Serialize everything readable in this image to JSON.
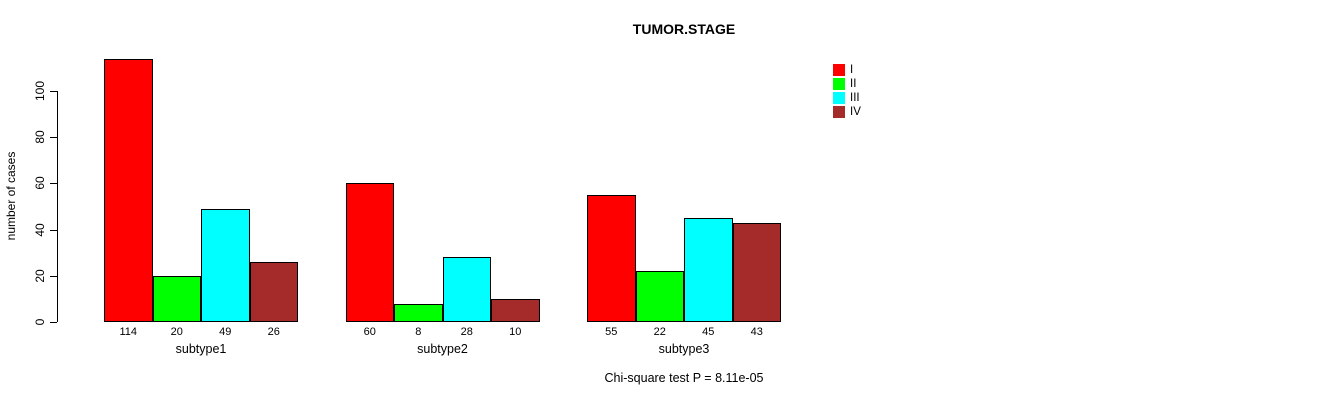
{
  "chart_data": {
    "type": "bar",
    "grouped": true,
    "title": "TUMOR.STAGE",
    "xlabel": "",
    "ylabel": "number of cases",
    "ylim": [
      0,
      100
    ],
    "yticks": [
      0,
      20,
      40,
      60,
      80,
      100
    ],
    "grid": false,
    "categories": [
      "subtype1",
      "subtype2",
      "subtype3"
    ],
    "series": [
      {
        "name": "I",
        "color": "#FF0000",
        "values": [
          114,
          60,
          55
        ]
      },
      {
        "name": "II",
        "color": "#00FF00",
        "values": [
          20,
          8,
          22
        ]
      },
      {
        "name": "III",
        "color": "#00FFFF",
        "values": [
          49,
          28,
          45
        ]
      },
      {
        "name": "IV",
        "color": "#A52A2A",
        "values": [
          26,
          10,
          43
        ]
      }
    ],
    "bar_value_labels": [
      [
        "114",
        "20",
        "49",
        "26"
      ],
      [
        "60",
        "8",
        "28",
        "10"
      ],
      [
        "55",
        "22",
        "45",
        "43"
      ]
    ],
    "legend": {
      "position": "top-right",
      "entries": [
        "I",
        "II",
        "III",
        "IV"
      ]
    },
    "annotation": "Chi-square test P = 8.11e-05"
  }
}
